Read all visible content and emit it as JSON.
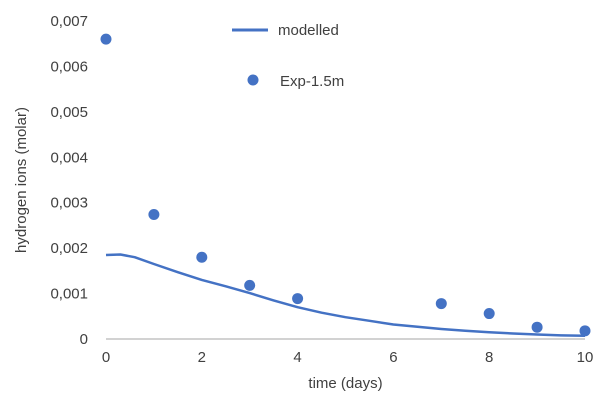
{
  "chart_data": {
    "type": "line",
    "xlabel": "time (days)",
    "ylabel": "hydrogen ions (molar)",
    "xlim": [
      0,
      10
    ],
    "ylim": [
      0,
      0.007
    ],
    "x_ticks": [
      0,
      2,
      4,
      6,
      8,
      10
    ],
    "x_tick_labels": [
      "0",
      "2",
      "4",
      "6",
      "8",
      "10"
    ],
    "y_ticks": [
      0,
      0.001,
      0.002,
      0.003,
      0.004,
      0.005,
      0.006,
      0.007
    ],
    "y_tick_labels": [
      "0",
      "0,001",
      "0,002",
      "0,003",
      "0,004",
      "0,005",
      "0,006",
      "0,007"
    ],
    "grid": false,
    "legend_position": "top-center",
    "colors": {
      "series": "#4472c4",
      "axis": "#a6a6a6",
      "text": "#404040"
    },
    "series": [
      {
        "name": "modelled",
        "type": "line",
        "x": [
          0,
          0.3,
          0.6,
          1,
          1.5,
          2,
          2.5,
          3,
          3.5,
          4,
          4.5,
          5,
          5.5,
          6,
          6.5,
          7,
          7.5,
          8,
          8.5,
          9,
          9.5,
          10
        ],
        "y": [
          0.00185,
          0.00186,
          0.0018,
          0.00165,
          0.00147,
          0.0013,
          0.00116,
          0.00101,
          0.00085,
          0.0007,
          0.00058,
          0.00048,
          0.0004,
          0.00032,
          0.00027,
          0.00022,
          0.00018,
          0.00015,
          0.00012,
          0.0001,
          8e-05,
          7e-05
        ]
      },
      {
        "name": "Exp-1.5m",
        "type": "scatter",
        "x": [
          0,
          1,
          2,
          3,
          4,
          7,
          8,
          9,
          10
        ],
        "y": [
          0.0066,
          0.00274,
          0.0018,
          0.00118,
          0.00089,
          0.00078,
          0.00056,
          0.00026,
          0.00018
        ]
      }
    ]
  }
}
